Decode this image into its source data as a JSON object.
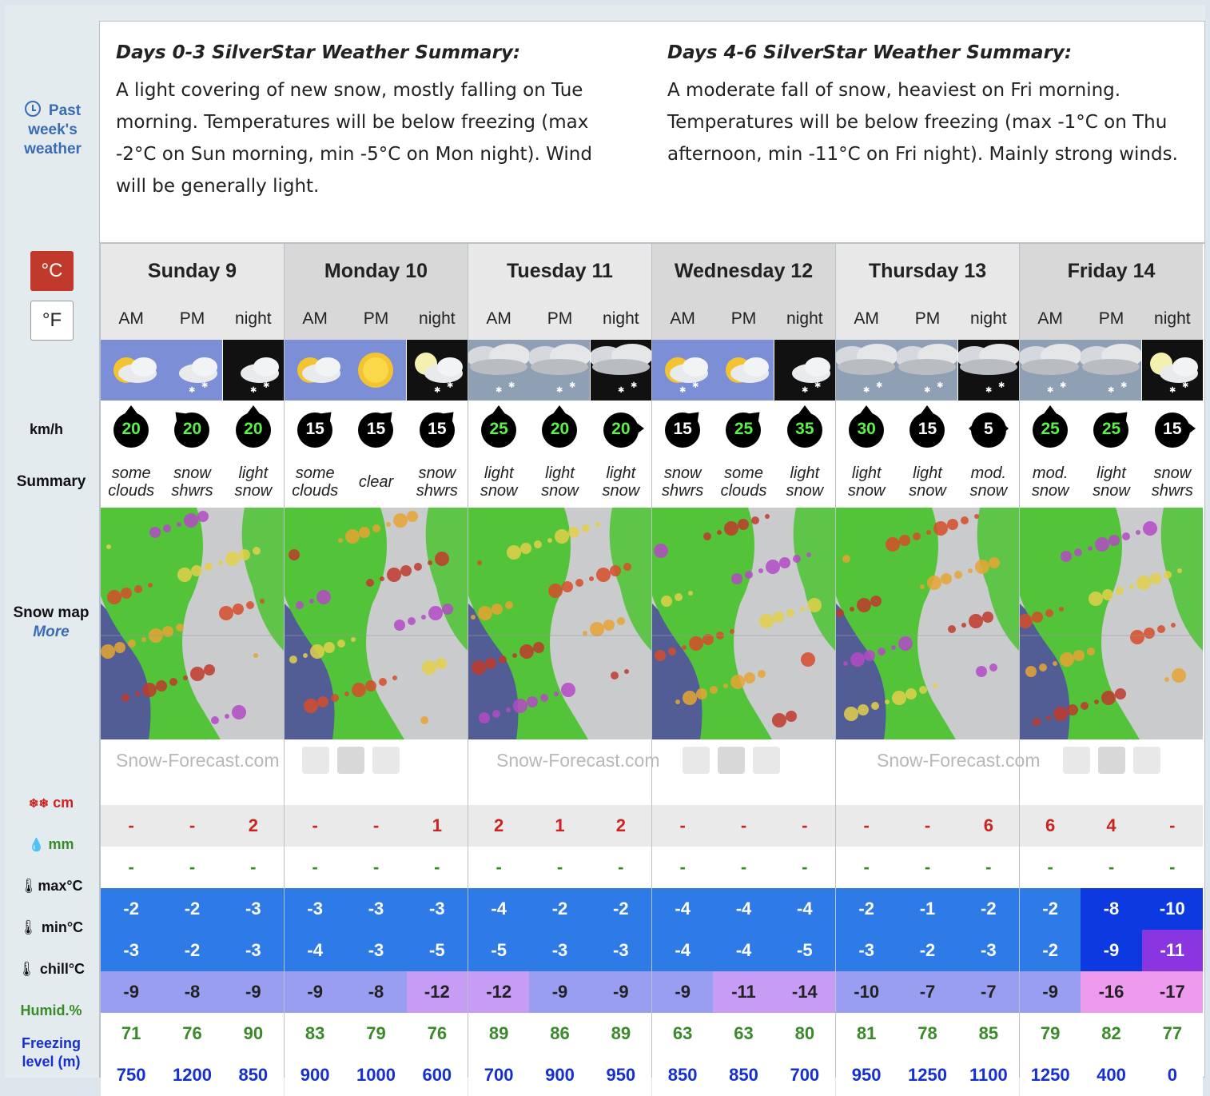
{
  "sidebar": {
    "past_weather": "Past week's weather",
    "unit_c": "°C",
    "unit_f": "°F",
    "wind_label": "km/h",
    "summary_label": "Summary",
    "snow_map_label": "Snow map",
    "snow_map_more": "More",
    "snow_label": "cm",
    "rain_label": "mm",
    "max_label": "max°C",
    "min_label": "min°C",
    "chill_label": "chill°C",
    "humid_label": "Humid.%",
    "freezing_label": "Freezing level (m)"
  },
  "summaries": [
    {
      "title": "Days 0-3 SilverStar Weather Summary:",
      "text": "A light covering of new snow, mostly falling on Tue morning. Temperatures will be below freezing (max -2°C on Sun morning, min -5°C on Mon night). Wind will be generally light."
    },
    {
      "title": "Days 4-6 SilverStar Weather Summary:",
      "text": "A moderate fall of snow, heaviest on Fri morning. Temperatures will be below freezing (max -1°C on Thu afternoon, min -11°C on Fri night). Mainly strong winds."
    }
  ],
  "watermark": "Snow-Forecast.com",
  "colors": {
    "accent_red": "#c0392b",
    "link_blue": "#3a6cb5",
    "humid_green": "#3a8a2a",
    "freeze_blue": "#1530d0",
    "snow_red": "#cc2222"
  },
  "days": [
    {
      "name": "Sunday 9",
      "periods": [
        "AM",
        "PM",
        "night"
      ],
      "icons": [
        "sun-cloud",
        "cloud-snow",
        "night-snow"
      ],
      "wind": [
        {
          "speed": "20",
          "dir": "N",
          "color": "green"
        },
        {
          "speed": "20",
          "dir": "NW",
          "color": "green"
        },
        {
          "speed": "20",
          "dir": "N",
          "color": "green"
        }
      ],
      "summary": [
        "some clouds",
        "snow shwrs",
        "light snow"
      ],
      "snow": [
        "-",
        "-",
        "2"
      ],
      "rain": [
        "-",
        "-",
        "-"
      ],
      "max": [
        "-2",
        "-2",
        "-3"
      ],
      "min": [
        "-3",
        "-2",
        "-3"
      ],
      "chill": [
        "-9",
        "-8",
        "-9"
      ],
      "humid": [
        "71",
        "76",
        "90"
      ],
      "freezing": [
        "750",
        "1200",
        "850"
      ]
    },
    {
      "name": "Monday 10",
      "periods": [
        "AM",
        "PM",
        "night"
      ],
      "icons": [
        "sun-cloud",
        "sun",
        "moon-snow"
      ],
      "wind": [
        {
          "speed": "15",
          "dir": "NE",
          "color": "white"
        },
        {
          "speed": "15",
          "dir": "NE",
          "color": "white"
        },
        {
          "speed": "15",
          "dir": "NE",
          "color": "white"
        }
      ],
      "summary": [
        "some clouds",
        "clear",
        "snow shwrs"
      ],
      "snow": [
        "-",
        "-",
        "1"
      ],
      "rain": [
        "-",
        "-",
        "-"
      ],
      "max": [
        "-3",
        "-3",
        "-3"
      ],
      "min": [
        "-4",
        "-3",
        "-5"
      ],
      "chill": [
        "-9",
        "-8",
        "-12"
      ],
      "humid": [
        "83",
        "79",
        "76"
      ],
      "freezing": [
        "900",
        "1000",
        "600"
      ]
    },
    {
      "name": "Tuesday 11",
      "periods": [
        "AM",
        "PM",
        "night"
      ],
      "icons": [
        "heavy-cloud-snow",
        "heavy-cloud-snow",
        "heavy-cloud-night-snow"
      ],
      "wind": [
        {
          "speed": "25",
          "dir": "N",
          "color": "green"
        },
        {
          "speed": "20",
          "dir": "N",
          "color": "green"
        },
        {
          "speed": "20",
          "dir": "E",
          "color": "green"
        }
      ],
      "summary": [
        "light snow",
        "light snow",
        "light snow"
      ],
      "snow": [
        "2",
        "1",
        "2"
      ],
      "rain": [
        "-",
        "-",
        "-"
      ],
      "max": [
        "-4",
        "-2",
        "-2"
      ],
      "min": [
        "-5",
        "-3",
        "-3"
      ],
      "chill": [
        "-12",
        "-9",
        "-9"
      ],
      "humid": [
        "89",
        "86",
        "89"
      ],
      "freezing": [
        "700",
        "900",
        "950"
      ]
    },
    {
      "name": "Wednesday 12",
      "periods": [
        "AM",
        "PM",
        "night"
      ],
      "icons": [
        "cloud-snow-sun",
        "sun-cloud",
        "night-snow"
      ],
      "wind": [
        {
          "speed": "15",
          "dir": "NE",
          "color": "white"
        },
        {
          "speed": "25",
          "dir": "NE",
          "color": "green"
        },
        {
          "speed": "35",
          "dir": "N",
          "color": "green"
        }
      ],
      "summary": [
        "snow shwrs",
        "some clouds",
        "light snow"
      ],
      "snow": [
        "-",
        "-",
        "-"
      ],
      "rain": [
        "-",
        "-",
        "-"
      ],
      "max": [
        "-4",
        "-4",
        "-4"
      ],
      "min": [
        "-4",
        "-4",
        "-5"
      ],
      "chill": [
        "-9",
        "-11",
        "-14"
      ],
      "humid": [
        "63",
        "63",
        "80"
      ],
      "freezing": [
        "850",
        "850",
        "700"
      ]
    },
    {
      "name": "Thursday 13",
      "periods": [
        "AM",
        "PM",
        "night"
      ],
      "icons": [
        "heavy-cloud-snow",
        "heavy-cloud-snow",
        "heavy-cloud-night-snow"
      ],
      "wind": [
        {
          "speed": "30",
          "dir": "N",
          "color": "green"
        },
        {
          "speed": "15",
          "dir": "N",
          "color": "white"
        },
        {
          "speed": "5",
          "dir": "EW",
          "color": "white"
        }
      ],
      "summary": [
        "light snow",
        "light snow",
        "mod. snow"
      ],
      "snow": [
        "-",
        "-",
        "6"
      ],
      "rain": [
        "-",
        "-",
        "-"
      ],
      "max": [
        "-2",
        "-1",
        "-2"
      ],
      "min": [
        "-3",
        "-2",
        "-3"
      ],
      "chill": [
        "-10",
        "-7",
        "-7"
      ],
      "humid": [
        "81",
        "78",
        "85"
      ],
      "freezing": [
        "950",
        "1250",
        "1100"
      ]
    },
    {
      "name": "Friday 14",
      "periods": [
        "AM",
        "PM",
        "night"
      ],
      "icons": [
        "heavy-cloud-snow",
        "heavy-cloud-snow",
        "moon-snow"
      ],
      "wind": [
        {
          "speed": "25",
          "dir": "N",
          "color": "green"
        },
        {
          "speed": "25",
          "dir": "NE",
          "color": "green"
        },
        {
          "speed": "15",
          "dir": "E",
          "color": "white"
        }
      ],
      "summary": [
        "mod. snow",
        "light snow",
        "snow shwrs"
      ],
      "snow": [
        "6",
        "4",
        "-"
      ],
      "rain": [
        "-",
        "-",
        "-"
      ],
      "max": [
        "-2",
        "-8",
        "-10"
      ],
      "min": [
        "-2",
        "-9",
        "-11"
      ],
      "chill": [
        "-9",
        "-16",
        "-17"
      ],
      "humid": [
        "79",
        "82",
        "77"
      ],
      "freezing": [
        "1250",
        "400",
        "0"
      ]
    }
  ]
}
